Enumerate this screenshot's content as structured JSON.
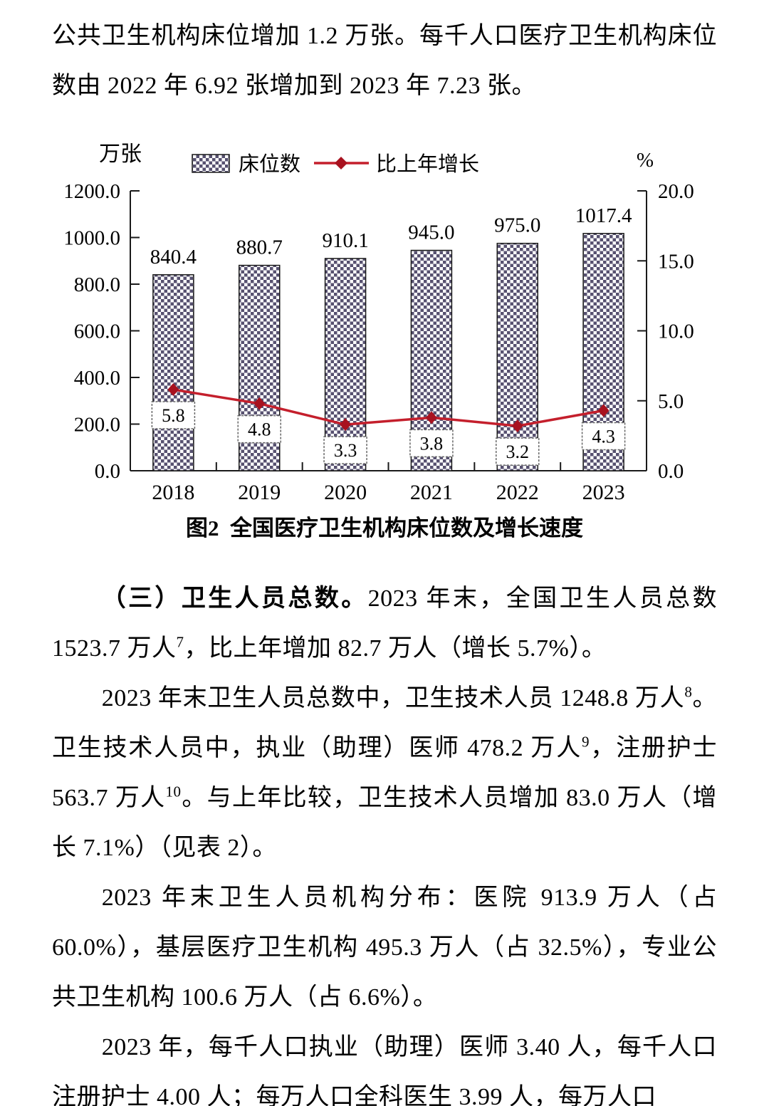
{
  "document": {
    "paragraphs": [
      {
        "indent": false,
        "segments": [
          {
            "text": "公共卫生机构床位增加 1.2 万张。每千人口医疗卫生机构床位数由 2022 年 6.92 张增加到 2023 年 7.23 张。"
          }
        ]
      },
      {
        "indent": true,
        "segments": [
          {
            "text": "（三）卫生人员总数。",
            "bold": true
          },
          {
            "text": "2023 年末，全国卫生人员总数 1523.7 万人"
          },
          {
            "text": "7",
            "sup": true
          },
          {
            "text": "，比上年增加 82.7 万人（增长 5.7%）。"
          }
        ]
      },
      {
        "indent": true,
        "segments": [
          {
            "text": "2023 年末卫生人员总数中，卫生技术人员 1248.8 万人"
          },
          {
            "text": "8",
            "sup": true
          },
          {
            "text": "。卫生技术人员中，执业（助理）医师 478.2 万人"
          },
          {
            "text": "9",
            "sup": true
          },
          {
            "text": "，注册护士 563.7 万人"
          },
          {
            "text": "10",
            "sup": true
          },
          {
            "text": "。与上年比较，卫生技术人员增加 83.0 万人（增长 7.1%）（见表 2）。"
          }
        ]
      },
      {
        "indent": true,
        "segments": [
          {
            "text": "2023 年末卫生人员机构分布：医院 913.9 万人（占 60.0%），基层医疗卫生机构 495.3 万人（占 32.5%），专业公共卫生机构 100.6 万人（占 6.6%）。"
          }
        ]
      },
      {
        "indent": true,
        "segments": [
          {
            "text": "2023 年，每千人口执业（助理）医师 3.40 人，每千人口注册护士 4.00 人；每万人口全科医生 3.99 人，每万人口"
          }
        ]
      }
    ]
  },
  "chart_data": {
    "type": "bar",
    "subtype": "bar-line-combo",
    "title": "",
    "caption": "图2  全国医疗卫生机构床位数及增长速度",
    "categories": [
      "2018",
      "2019",
      "2020",
      "2021",
      "2022",
      "2023"
    ],
    "series": [
      {
        "name": "床位数",
        "type": "bar",
        "axis": "left",
        "values": [
          840.4,
          880.7,
          910.1,
          945.0,
          975.0,
          1017.4
        ]
      },
      {
        "name": "比上年增长",
        "type": "line",
        "axis": "right",
        "values": [
          5.8,
          4.8,
          3.3,
          3.8,
          3.2,
          4.3
        ]
      }
    ],
    "left_axis": {
      "label": "万张",
      "min": 0,
      "max": 1200,
      "step": 200
    },
    "right_axis": {
      "label": "%",
      "min": 0,
      "max": 20,
      "step": 5
    },
    "legend_position": "top",
    "grid": false,
    "data_labels": true,
    "colors": {
      "bar_fill": "#575170",
      "bar_border": "#1a1a1a",
      "line": "#c41f2c",
      "marker": "#a8121f",
      "axis": "#1a1a1a",
      "label_box_border": "#666666",
      "text": "#000000"
    }
  }
}
